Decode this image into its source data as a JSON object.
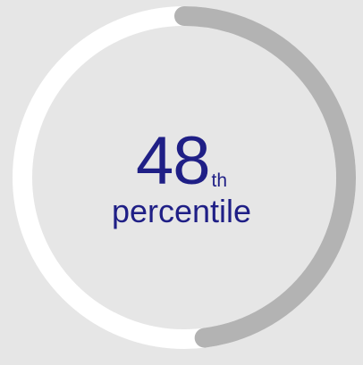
{
  "gauge": {
    "percentile_value": "48",
    "suffix": "th",
    "label": "percentile",
    "fill_fraction": 0.48,
    "colors": {
      "background": "#e6e6e6",
      "track": "#ffffff",
      "fill": "#b3b3b3",
      "text": "#1f1f86"
    }
  }
}
